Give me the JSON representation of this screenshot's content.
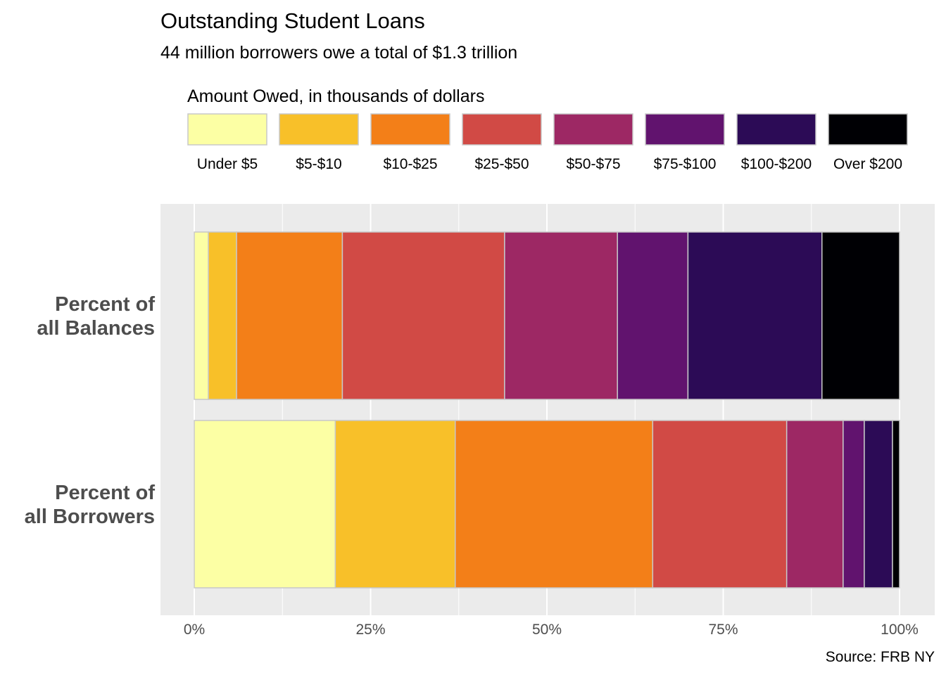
{
  "chart_data": {
    "type": "bar",
    "orientation": "horizontal",
    "stacked": true,
    "title": "Outstanding Student Loans",
    "subtitle": "44 million borrowers owe a total of $1.3 trillion",
    "legend": {
      "title": "Amount Owed, in thousands of dollars",
      "position": "top"
    },
    "categories": [
      "Percent of\nall Balances",
      "Percent of\nall Borrowers"
    ],
    "series": [
      {
        "name": "Under $5",
        "color": "#FCFFA4",
        "values": [
          0.02,
          0.2
        ]
      },
      {
        "name": "$5-$10",
        "color": "#F8C029",
        "values": [
          0.04,
          0.17
        ]
      },
      {
        "name": "$10-$25",
        "color": "#F37F18",
        "values": [
          0.15,
          0.28
        ]
      },
      {
        "name": "$25-$50",
        "color": "#D14A45",
        "values": [
          0.23,
          0.19
        ]
      },
      {
        "name": "$50-$75",
        "color": "#9D2864",
        "values": [
          0.16,
          0.08
        ]
      },
      {
        "name": "$75-$100",
        "color": "#61136E",
        "values": [
          0.1,
          0.03
        ]
      },
      {
        "name": "$100-$200",
        "color": "#2C0B56",
        "values": [
          0.19,
          0.04
        ]
      },
      {
        "name": "Over $200",
        "color": "#000004",
        "values": [
          0.11,
          0.01
        ]
      }
    ],
    "xlim": [
      0,
      1
    ],
    "xticks": [
      0,
      0.25,
      0.5,
      0.75,
      1
    ],
    "xtick_labels": [
      "0%",
      "25%",
      "50%",
      "75%",
      "100%"
    ],
    "grid": true,
    "caption": "Source: FRB NY"
  },
  "colors": {
    "panel_bg": "#EBEBEB",
    "grid_major": "#FFFFFF",
    "bar_outline": "#C8C8C8",
    "axis_text": "#4D4D4D"
  }
}
